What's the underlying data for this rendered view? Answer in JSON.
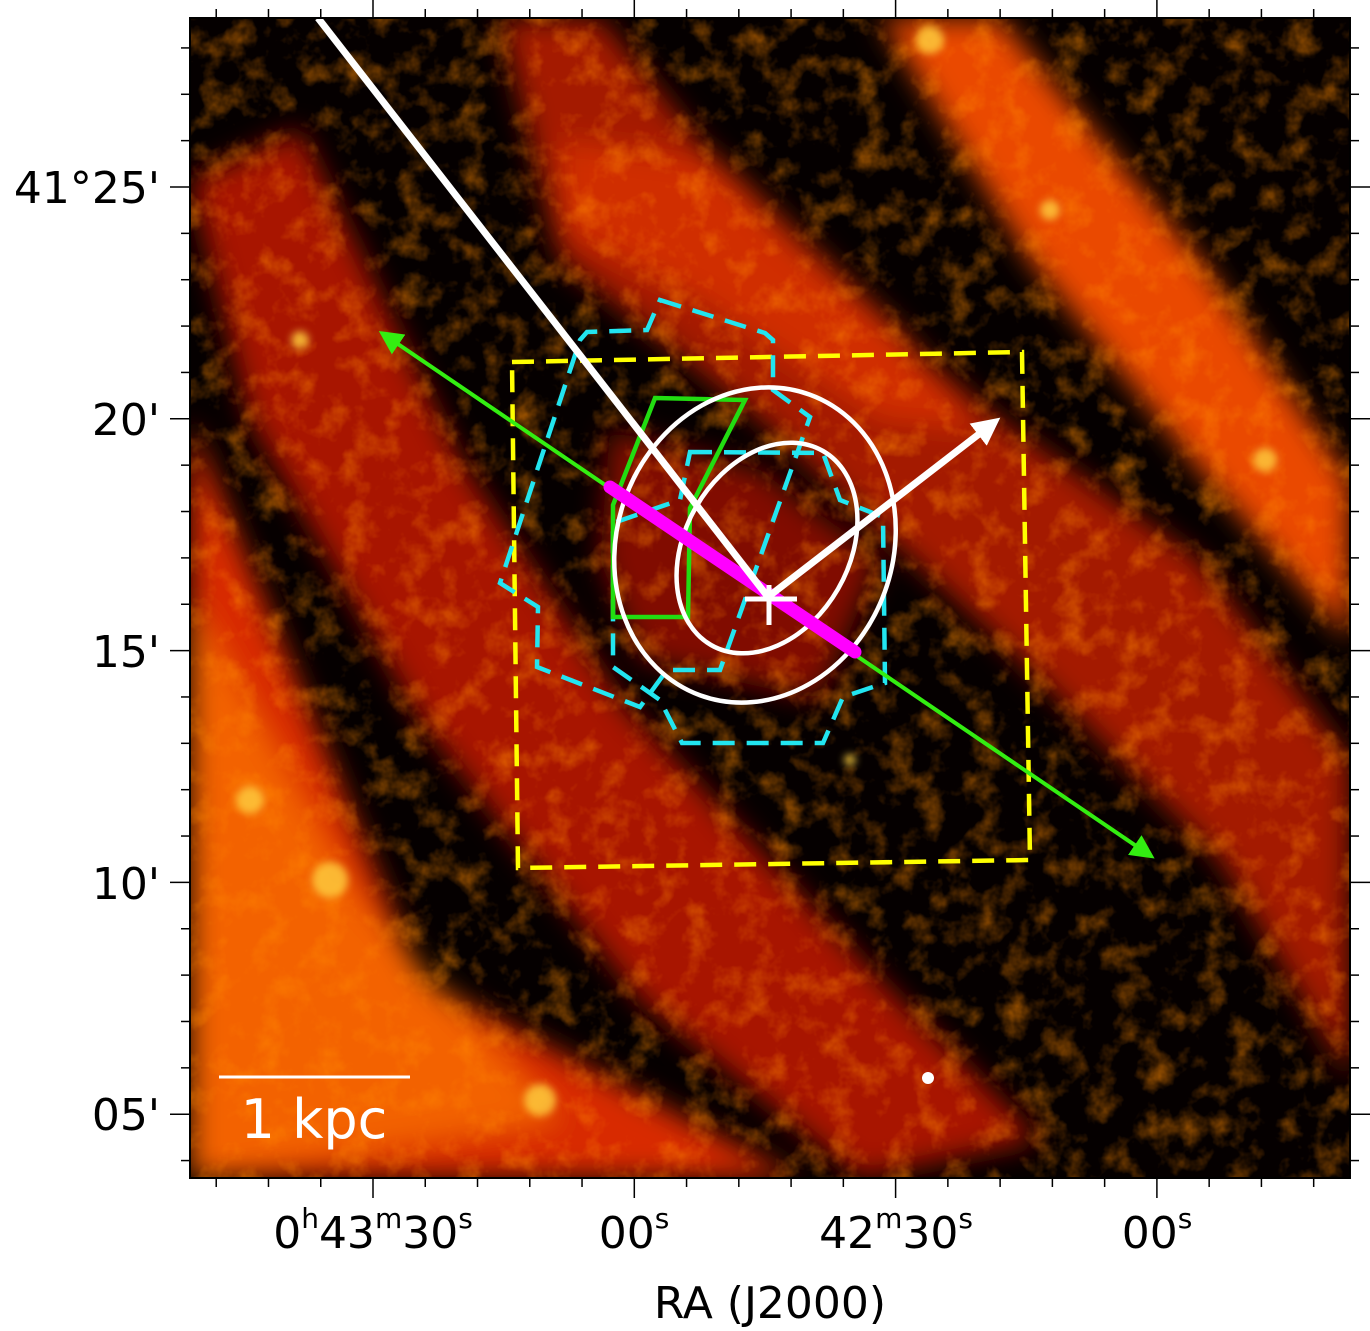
{
  "axes": {
    "xlabel": "RA (J2000)",
    "x_ticks": [
      {
        "h": "0",
        "hs": "h",
        "m": "43",
        "ms": "m",
        "s": "30",
        "ss": "s"
      },
      {
        "s": "00",
        "ss": "s"
      },
      {
        "m": "42",
        "ms": "m",
        "s": "30",
        "ss": "s"
      },
      {
        "s": "00",
        "ss": "s"
      }
    ],
    "y_ticks": [
      "41°25'",
      "20'",
      "15'",
      "10'",
      "05'"
    ]
  },
  "scale_bar": {
    "label": "1 kpc"
  },
  "colors": {
    "colormap": "hot",
    "footprint_yellow": "#ffff00",
    "footprint_cyan": "#22e5f0",
    "green_region": "#22dd11",
    "major_axis_line": "#ff00ff",
    "ellipses": "#ffffff",
    "arrows_white": "#ffffff",
    "arrow_green": "#33ee11"
  },
  "icons": [
    "center-cross-icon"
  ]
}
